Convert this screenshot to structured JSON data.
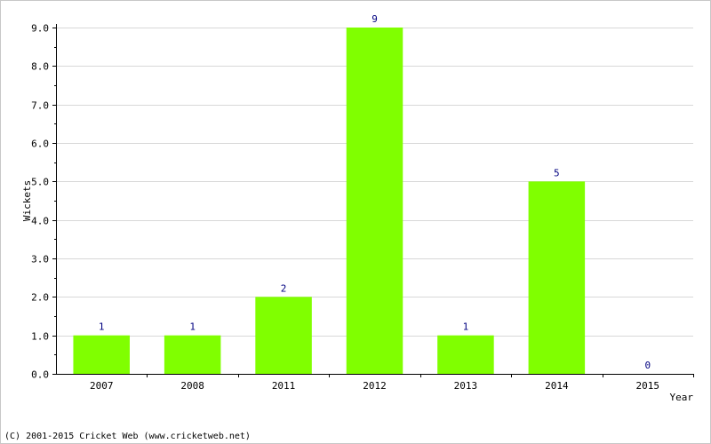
{
  "chart_data": {
    "type": "bar",
    "categories": [
      "2007",
      "2008",
      "2011",
      "2012",
      "2013",
      "2014",
      "2015"
    ],
    "values": [
      1,
      1,
      2,
      9,
      1,
      5,
      0
    ],
    "data_labels": [
      "1",
      "1",
      "2",
      "9",
      "1",
      "5",
      "0"
    ],
    "xlabel": "Year",
    "ylabel": "Wickets",
    "ylim": [
      0,
      9
    ],
    "yticks": [
      0,
      1,
      2,
      3,
      4,
      5,
      6,
      7,
      8,
      9
    ],
    "ytick_labels": [
      "0.0",
      "1.0",
      "2.0",
      "3.0",
      "4.0",
      "5.0",
      "6.0",
      "7.0",
      "8.0",
      "9.0"
    ],
    "grid": "horizontal",
    "colors": {
      "bar": "#80ff00",
      "data_label": "#000080",
      "grid": "#d8d8d8",
      "axis": "#000000"
    }
  },
  "footer": {
    "copyright": "(C) 2001-2015 Cricket Web (www.cricketweb.net)"
  }
}
